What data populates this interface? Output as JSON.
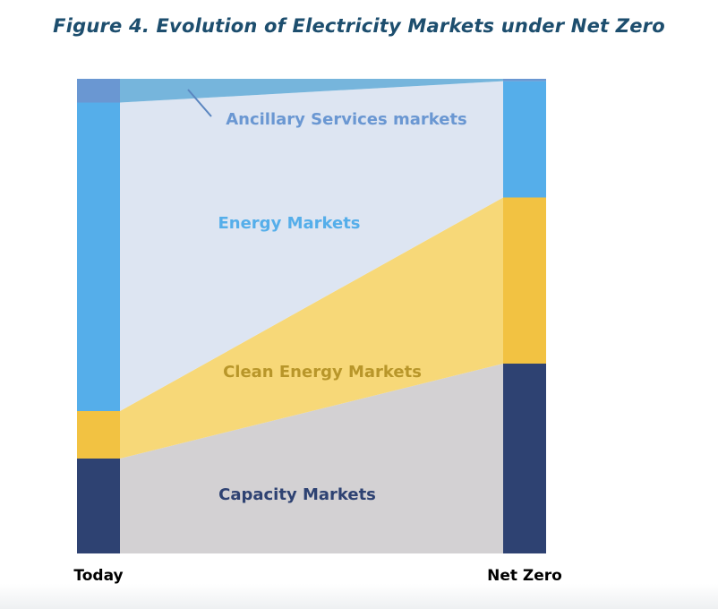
{
  "chart_data": {
    "type": "area",
    "title": "Figure 4. Evolution of Electricity Markets under Net Zero",
    "categories": [
      "Today",
      "Net Zero"
    ],
    "ylim": [
      0,
      100
    ],
    "series": [
      {
        "name": "Capacity Markets",
        "values": [
          20,
          40
        ],
        "bar_color": "#2e4272",
        "flow_color": "#d3d1d3",
        "label_color": "#2e4272"
      },
      {
        "name": "Clean Energy Markets",
        "values": [
          10,
          35
        ],
        "bar_color": "#f2c242",
        "flow_color": "#f7d878",
        "label_color": "#b8962a"
      },
      {
        "name": "Energy Markets",
        "values": [
          65,
          24.5
        ],
        "bar_color": "#55aeea",
        "flow_color": "#dde5f2",
        "label_color": "#55aeea"
      },
      {
        "name": "Ancillary Services markets",
        "values": [
          5,
          0.5
        ],
        "bar_color": "#6a97d2",
        "flow_color": "#76b5dc",
        "label_color": "#6a97d2"
      }
    ]
  }
}
